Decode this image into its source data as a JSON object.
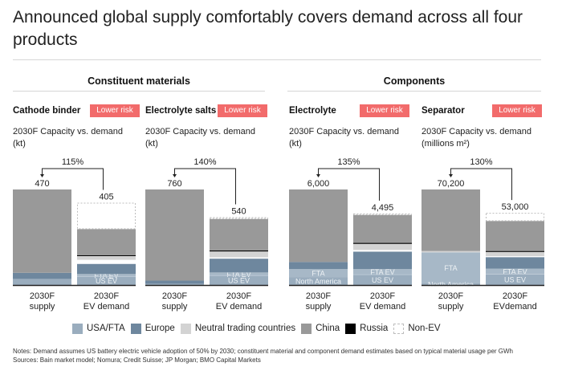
{
  "title": "Announced global supply comfortably covers demand across all four products",
  "sections": {
    "constituent": "Constituent materials",
    "components": "Components"
  },
  "colors": {
    "usa_fta": "#9aadbe",
    "fta_ev": "#a7b8c7",
    "europe": "#6e879e",
    "neutral": "#d3d3d3",
    "china": "#999999",
    "russia": "#000000",
    "non_ev_border": "#bdbdbd",
    "risk": "#f26b6b"
  },
  "legend": [
    {
      "key": "usa_fta",
      "label": "USA/FTA"
    },
    {
      "key": "europe",
      "label": "Europe"
    },
    {
      "key": "neutral",
      "label": "Neutral trading countries"
    },
    {
      "key": "china",
      "label": "China"
    },
    {
      "key": "russia",
      "label": "Russia"
    },
    {
      "key": "non_ev",
      "label": "Non-EV"
    }
  ],
  "notes": {
    "line1": "Notes: Demand assumes US battery electric vehicle adoption of 50% by 2030; constituent material and component demand estimates based on typical material usage per GWh",
    "line2": "Sources: Bain market model; Nomura; Credit Suisse; JP Morgan; BMO Capital Markets"
  },
  "chart_data": [
    {
      "type": "bar",
      "title": "Cathode binder",
      "risk": "Lower risk",
      "subtitle": "2030F Capacity vs. demand (kt)",
      "ratio_label": "115%",
      "categories": [
        "2030F supply",
        "2030F EV demand"
      ],
      "category_lines": [
        [
          "2030F",
          "supply"
        ],
        [
          "2030F",
          "EV demand"
        ]
      ],
      "totals": [
        470,
        405
      ],
      "total_labels": [
        "470",
        "405"
      ],
      "supply_segments": [
        {
          "key": "usa_fta",
          "value": 30
        },
        {
          "key": "europe",
          "value": 30
        },
        {
          "key": "china",
          "value": 410
        }
      ],
      "demand_segments": [
        {
          "key": "usa_fta",
          "value": 42,
          "label": "US EV"
        },
        {
          "key": "fta_ev",
          "value": 12,
          "label": "FTA EV"
        },
        {
          "key": "europe",
          "value": 50
        },
        {
          "key": "gap",
          "value": 20
        },
        {
          "key": "neutral",
          "value": 20
        },
        {
          "key": "russia",
          "value": 3
        },
        {
          "key": "china",
          "value": 128
        },
        {
          "key": "non_ev",
          "value": 130
        }
      ],
      "demand_ev_total": 275,
      "supply_segment_labels": []
    },
    {
      "type": "bar",
      "title": "Electrolyte salts",
      "risk": "Lower risk",
      "subtitle": "2030F Capacity vs. demand (kt)",
      "ratio_label": "140%",
      "categories": [
        "2030F supply",
        "2030F EV demand"
      ],
      "category_lines": [
        [
          "2030F",
          "supply"
        ],
        [
          "2030F",
          "EV demand"
        ]
      ],
      "totals": [
        760,
        540
      ],
      "total_labels": [
        "760",
        "540"
      ],
      "supply_segments": [
        {
          "key": "usa_fta",
          "value": 10
        },
        {
          "key": "europe",
          "value": 25
        },
        {
          "key": "china",
          "value": 725
        }
      ],
      "demand_segments": [
        {
          "key": "usa_fta",
          "value": 75,
          "label": "US EV"
        },
        {
          "key": "fta_ev",
          "value": 25,
          "label": "FTA EV"
        },
        {
          "key": "europe",
          "value": 110
        },
        {
          "key": "gap",
          "value": 10
        },
        {
          "key": "neutral",
          "value": 50
        },
        {
          "key": "russia",
          "value": 5
        },
        {
          "key": "china",
          "value": 250
        },
        {
          "key": "non_ev",
          "value": 15
        }
      ],
      "supply_segment_labels": []
    },
    {
      "type": "bar",
      "title": "Electrolyte",
      "risk": "Lower risk",
      "subtitle": "2030F Capacity vs. demand (kt)",
      "ratio_label": "135%",
      "categories": [
        "2030F supply",
        "2030F EV demand"
      ],
      "category_lines": [
        [
          "2030F",
          "supply"
        ],
        [
          "2030F",
          "EV demand"
        ]
      ],
      "totals": [
        6000,
        4495
      ],
      "total_labels": [
        "6,000",
        "4,495"
      ],
      "supply_segments": [
        {
          "key": "usa_fta",
          "value": 500,
          "label": "North America"
        },
        {
          "key": "fta_ev",
          "value": 500,
          "label": "FTA"
        },
        {
          "key": "europe",
          "value": 450
        },
        {
          "key": "china",
          "value": 4550
        }
      ],
      "demand_segments": [
        {
          "key": "usa_fta",
          "value": 650,
          "label": "US EV"
        },
        {
          "key": "fta_ev",
          "value": 350,
          "label": "FTA EV"
        },
        {
          "key": "europe",
          "value": 1100
        },
        {
          "key": "gap",
          "value": 100
        },
        {
          "key": "neutral",
          "value": 400
        },
        {
          "key": "russia",
          "value": 45
        },
        {
          "key": "china",
          "value": 1750
        },
        {
          "key": "non_ev",
          "value": 100
        }
      ],
      "supply_segment_labels": [
        "North America",
        "FTA"
      ]
    },
    {
      "type": "bar",
      "title": "Separator",
      "risk": "Lower risk",
      "subtitle": "2030F Capacity vs. demand (millions m²)",
      "ratio_label": "130%",
      "categories": [
        "2030F supply",
        "2030F EVdemand"
      ],
      "category_lines": [
        [
          "2030F",
          "supply"
        ],
        [
          "2030F",
          "EVdemand"
        ]
      ],
      "totals": [
        70200,
        53000
      ],
      "total_labels": [
        "70,200",
        "53,000"
      ],
      "supply_segments": [
        {
          "key": "usa_fta",
          "value": 1200,
          "label": "North America"
        },
        {
          "key": "fta_ev",
          "value": 22800,
          "label": "FTA"
        },
        {
          "key": "neutral",
          "value": 1000
        },
        {
          "key": "china",
          "value": 45200
        }
      ],
      "demand_segments": [
        {
          "key": "usa_fta",
          "value": 8000,
          "label": "US EV"
        },
        {
          "key": "fta_ev",
          "value": 4000,
          "label": "FTA EV"
        },
        {
          "key": "europe",
          "value": 8500
        },
        {
          "key": "gap",
          "value": 700
        },
        {
          "key": "neutral",
          "value": 3300
        },
        {
          "key": "russia",
          "value": 500
        },
        {
          "key": "china",
          "value": 22000
        },
        {
          "key": "non_ev",
          "value": 6000
        }
      ],
      "supply_segment_labels": [
        "North America",
        "FTA"
      ]
    }
  ]
}
